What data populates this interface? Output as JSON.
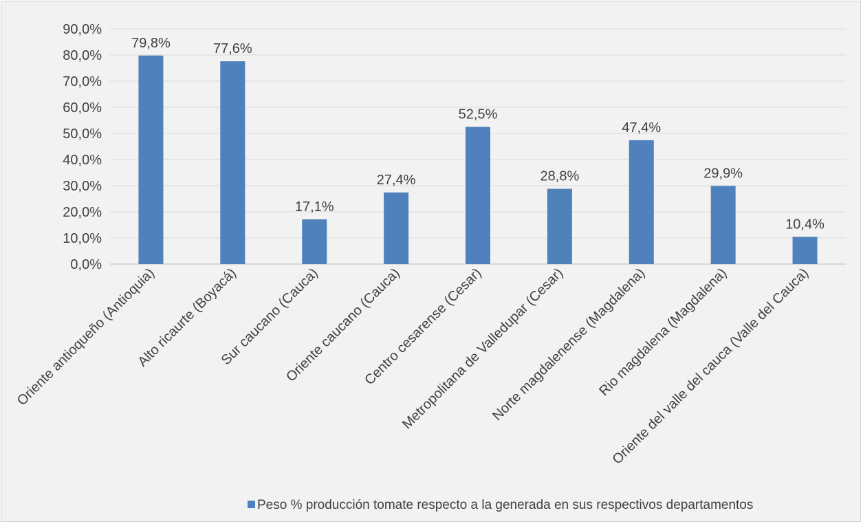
{
  "chart_data": {
    "type": "bar",
    "categories": [
      "Oriente antioqueño (Antioquia)",
      "Alto ricaurte (Boyacá)",
      "Sur caucano (Cauca)",
      "Oriente caucano (Cauca)",
      "Centro cesarense (Cesar)",
      "Metropolitana de Valledupar (Cesar)",
      "Norte magdalenense (Magdalena)",
      "Rio magdalena (Magdalena)",
      "Oriente del valle del cauca (Valle del Cauca)"
    ],
    "series": [
      {
        "name": "Peso % producción tomate respecto a la generada en sus respectivos departamentos",
        "values": [
          79.8,
          77.6,
          17.1,
          27.4,
          52.5,
          28.8,
          47.4,
          29.9,
          10.4
        ],
        "labels": [
          "79,8%",
          "77,6%",
          "17,1%",
          "27,4%",
          "52,5%",
          "28,8%",
          "47,4%",
          "29,9%",
          "10,4%"
        ],
        "color": "#4f81bd"
      }
    ],
    "ylim": [
      0,
      90
    ],
    "yticks": [
      0,
      10,
      20,
      30,
      40,
      50,
      60,
      70,
      80,
      90
    ],
    "ytick_labels": [
      "0,0%",
      "10,0%",
      "20,0%",
      "30,0%",
      "40,0%",
      "50,0%",
      "60,0%",
      "70,0%",
      "80,0%",
      "90,0%"
    ],
    "grid": true,
    "legend_position": "bottom",
    "title": "",
    "xlabel": "",
    "ylabel": ""
  }
}
